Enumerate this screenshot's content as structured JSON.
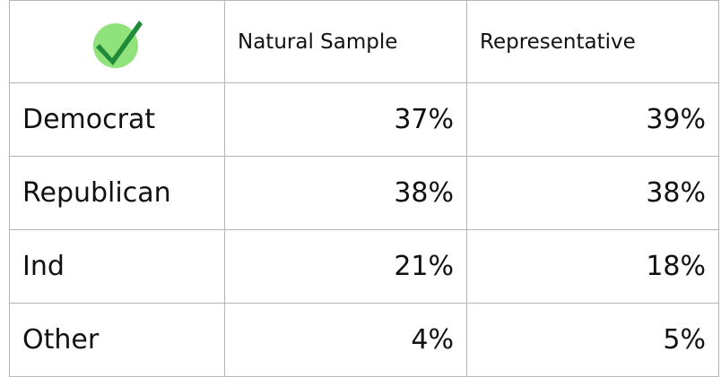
{
  "table": {
    "header": [
      "Natural Sample",
      "Representative"
    ],
    "rows": [
      [
        "Democrat",
        "37%",
        "39%"
      ],
      [
        "Republican",
        "38%",
        "38%"
      ],
      [
        "Ind",
        "21%",
        "18%"
      ],
      [
        "Other",
        "4%",
        "5%"
      ]
    ]
  }
}
